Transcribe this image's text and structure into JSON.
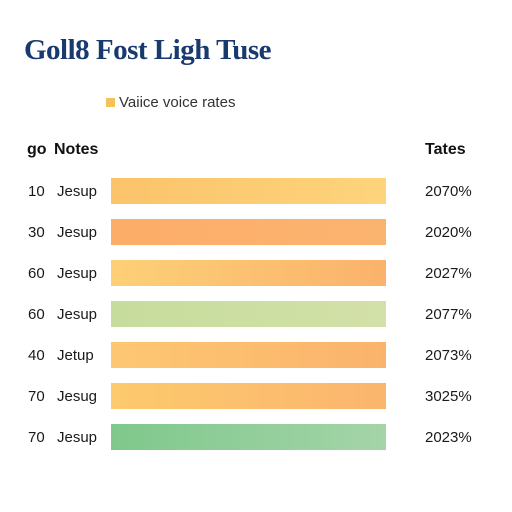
{
  "chart_data": {
    "type": "bar",
    "title": "Goll8 Fost Ligh Tuse",
    "legend": {
      "label": "Vaiice voice rates",
      "color": "#f7c15a",
      "position": "top-left"
    },
    "columns": {
      "index": "go",
      "label": "Notes",
      "value": "Tates"
    },
    "rows": [
      {
        "index": "10",
        "label": "Jesup",
        "value_text": "2070%",
        "colors": [
          "#fcc36a",
          "#fdd47c"
        ]
      },
      {
        "index": "30",
        "label": "Jesup",
        "value_text": "2020%",
        "colors": [
          "#fcad68",
          "#fbb470"
        ]
      },
      {
        "index": "60",
        "label": "Jesup",
        "value_text": "2027%",
        "colors": [
          "#fdd077",
          "#fbb26c"
        ]
      },
      {
        "index": "60",
        "label": "Jesup",
        "value_text": "2077%",
        "colors": [
          "#c6dc9c",
          "#d3e1a8"
        ]
      },
      {
        "index": "40",
        "label": "Jetup",
        "value_text": "2073%",
        "colors": [
          "#fdc772",
          "#fbb36c"
        ]
      },
      {
        "index": "70",
        "label": "Jesug",
        "value_text": "3025%",
        "colors": [
          "#fdca6d",
          "#fbb56e"
        ]
      },
      {
        "index": "70",
        "label": "Jesup",
        "value_text": "2023%",
        "colors": [
          "#7fc88c",
          "#a4d4a8"
        ]
      }
    ]
  }
}
